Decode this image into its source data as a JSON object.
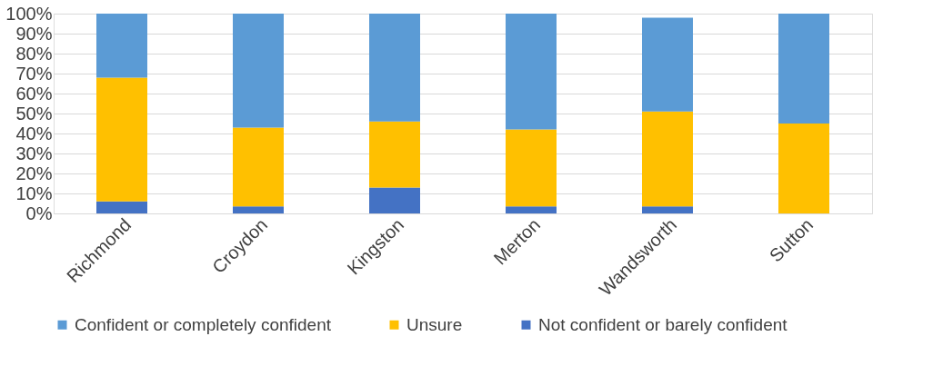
{
  "chart_data": {
    "type": "bar",
    "stacked": true,
    "categories": [
      "Richmond",
      "Croydon",
      "Kingston",
      "Merton",
      "Wandsworth",
      "Sutton"
    ],
    "series": [
      {
        "name": "Not confident or barely confident",
        "color": "#4472c4",
        "values": [
          6,
          3.5,
          13,
          3.5,
          3.5,
          0
        ]
      },
      {
        "name": "Unsure",
        "color": "#ffc000",
        "values": [
          62,
          39.5,
          33,
          38.5,
          47.5,
          45
        ]
      },
      {
        "name": "Confident or completely confident",
        "color": "#5b9bd5",
        "values": [
          32,
          57,
          54,
          58,
          47,
          55
        ]
      }
    ],
    "ylim": [
      0,
      100
    ],
    "yticks": [
      {
        "value": 0,
        "label": "0%"
      },
      {
        "value": 10,
        "label": "10%"
      },
      {
        "value": 20,
        "label": "20%"
      },
      {
        "value": 30,
        "label": "30%"
      },
      {
        "value": 40,
        "label": "40%"
      },
      {
        "value": 50,
        "label": "50%"
      },
      {
        "value": 60,
        "label": "60%"
      },
      {
        "value": 70,
        "label": "70%"
      },
      {
        "value": 80,
        "label": "80%"
      },
      {
        "value": 90,
        "label": "90%"
      },
      {
        "value": 100,
        "label": "100%"
      }
    ],
    "grid": "y",
    "legend": "bottom"
  }
}
